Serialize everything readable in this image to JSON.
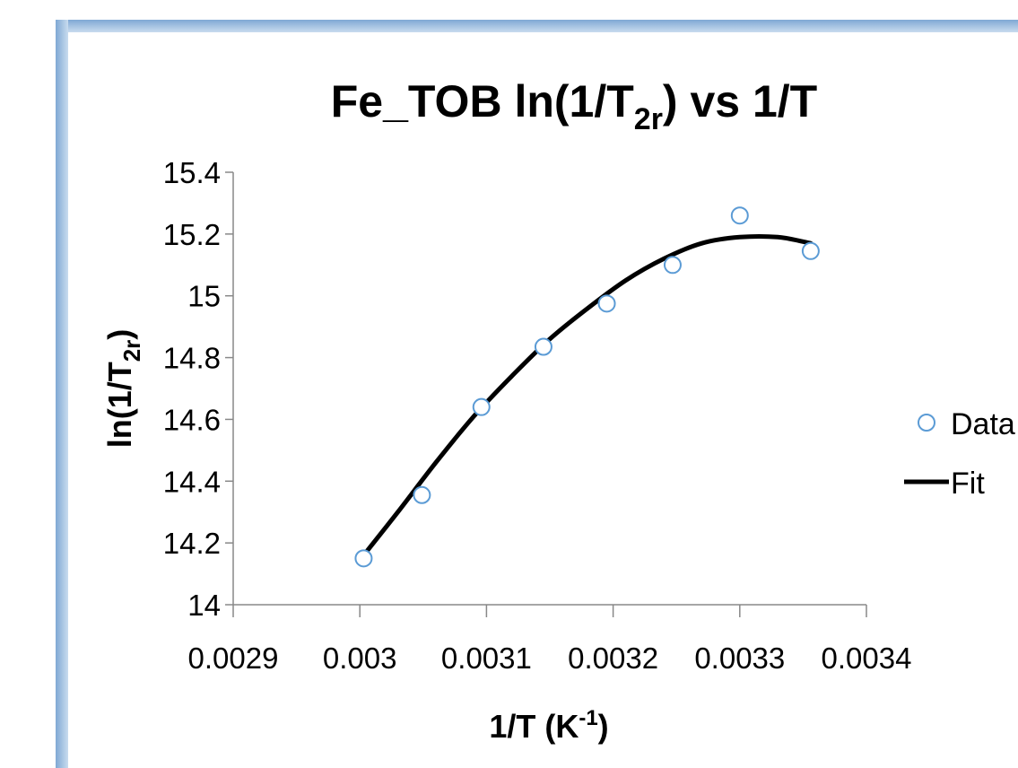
{
  "chart_data": {
    "type": "scatter",
    "title": {
      "prefix": "Fe_TOB ln(1/T",
      "subscript": "2r",
      "suffix": ") vs 1/T"
    },
    "xlabel": {
      "prefix": "1/T (K",
      "superscript": "-1",
      "suffix": ")"
    },
    "ylabel": {
      "prefix": "ln(1/T",
      "subscript": "2r",
      "suffix": ")"
    },
    "xlim": [
      0.0029,
      0.0034
    ],
    "ylim": [
      14,
      15.4
    ],
    "xticks": [
      "0.0029",
      "0.003",
      "0.0031",
      "0.0032",
      "0.0033",
      "0.0034"
    ],
    "xtick_values": [
      0.0029,
      0.003,
      0.0031,
      0.0032,
      0.0033,
      0.0034
    ],
    "yticks": [
      "15.4",
      "15.2",
      "15",
      "14.8",
      "14.6",
      "14.4",
      "14.2",
      "14"
    ],
    "ytick_values": [
      15.4,
      15.2,
      15,
      14.8,
      14.6,
      14.4,
      14.2,
      14
    ],
    "grid": false,
    "legend_position": "right",
    "series": [
      {
        "name": "Data",
        "kind": "scatter",
        "marker": "open-circle",
        "color": "#5b9bd5",
        "x": [
          0.003003,
          0.003049,
          0.003096,
          0.003145,
          0.003195,
          0.003247,
          0.0033,
          0.003356
        ],
        "y": [
          14.15,
          14.355,
          14.64,
          14.835,
          14.975,
          15.1,
          15.26,
          15.145
        ]
      },
      {
        "name": "Fit",
        "kind": "line",
        "color": "#000000",
        "x": [
          0.003003,
          0.00303,
          0.00306,
          0.00309,
          0.00312,
          0.00315,
          0.00318,
          0.00321,
          0.00324,
          0.00327,
          0.0033,
          0.00333,
          0.003356
        ],
        "y": [
          14.16,
          14.3,
          14.46,
          14.61,
          14.74,
          14.86,
          14.96,
          15.05,
          15.12,
          15.17,
          15.19,
          15.19,
          15.17
        ]
      }
    ]
  }
}
